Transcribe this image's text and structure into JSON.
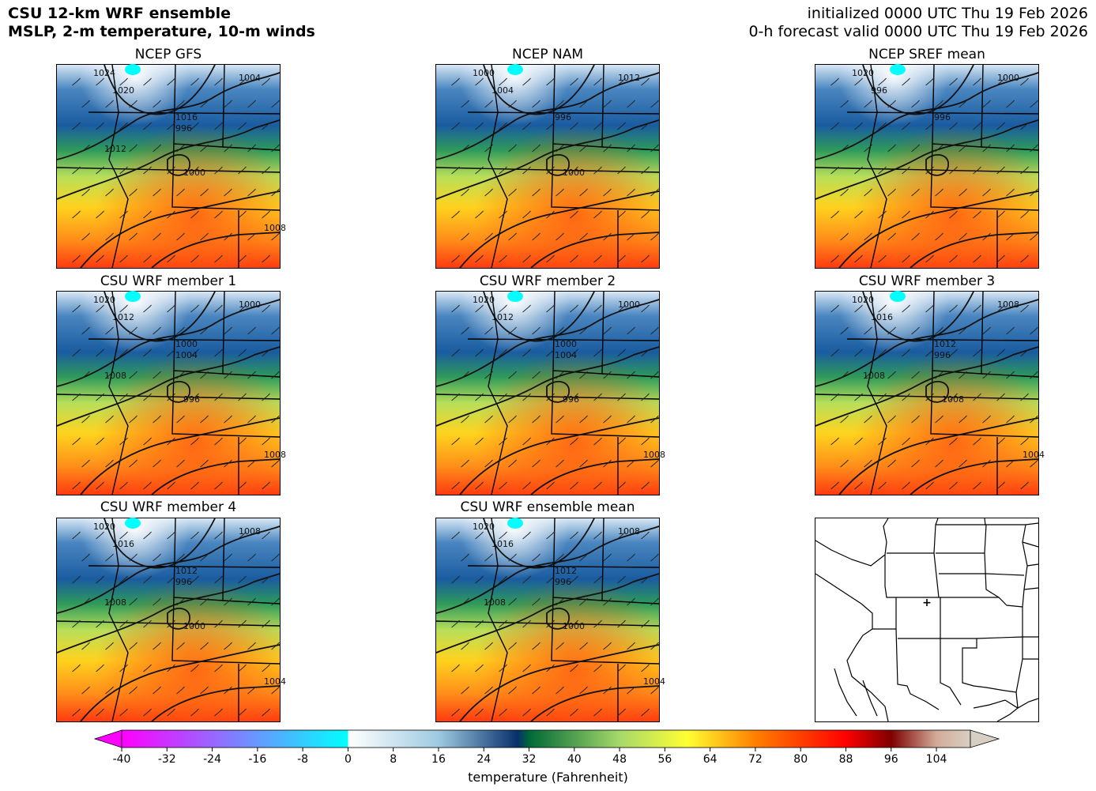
{
  "header": {
    "title_line1": "CSU 12-km WRF ensemble",
    "title_line2": "MSLP, 2-m temperature, 10-m winds",
    "init_line": "initialized 0000 UTC Thu 19 Feb 2026",
    "valid_line": "0-h forecast valid 0000 UTC Thu 19 Feb 2026"
  },
  "panels": [
    {
      "title": "NCEP GFS",
      "isobar_labels": [
        "1024",
        "1020",
        "1016",
        "1004",
        "1000",
        "996",
        "1008",
        "1012"
      ]
    },
    {
      "title": "NCEP NAM",
      "isobar_labels": [
        "1000",
        "1004",
        "996",
        "1012",
        "1000"
      ]
    },
    {
      "title": "NCEP SREF mean",
      "isobar_labels": [
        "1020",
        "996",
        "996",
        "1000"
      ]
    },
    {
      "title": "CSU WRF member 1",
      "isobar_labels": [
        "1020",
        "1012",
        "1000",
        "1000",
        "996",
        "1004",
        "1008",
        "1008"
      ]
    },
    {
      "title": "CSU WRF member 2",
      "isobar_labels": [
        "1020",
        "1012",
        "1000",
        "1000",
        "996",
        "1004",
        "1008"
      ]
    },
    {
      "title": "CSU WRF member 3",
      "isobar_labels": [
        "1020",
        "1016",
        "1012",
        "1008",
        "1008",
        "996",
        "1004",
        "1008"
      ]
    },
    {
      "title": "CSU WRF member 4",
      "isobar_labels": [
        "1020",
        "1016",
        "1012",
        "1008",
        "1000",
        "996",
        "1004",
        "1008"
      ]
    },
    {
      "title": "CSU WRF ensemble mean",
      "isobar_labels": [
        "1020",
        "1016",
        "1012",
        "1008",
        "1000",
        "996",
        "1004",
        "1008"
      ]
    }
  ],
  "colorbar": {
    "label": "temperature (Fahrenheit)",
    "min": -40,
    "max": 110,
    "ticks": [
      -40,
      -32,
      -24,
      -16,
      -8,
      0,
      8,
      16,
      24,
      32,
      40,
      48,
      56,
      64,
      72,
      80,
      88,
      96,
      104
    ],
    "colors": {
      "neg40": "#ff00ff",
      "neg20": "#7f7fff",
      "zero": "#00ffff",
      "zero_plus": "#ffffff",
      "t16": "#9ecae1",
      "t28": "#08306b",
      "t32": "#006837",
      "t48": "#a6d96a",
      "t60": "#ffff33",
      "t72": "#ff7f00",
      "t88": "#ff0000",
      "t96": "#7f0000",
      "t104": "#d2aa98",
      "t110": "#d8cfc4"
    }
  },
  "locator_map": {
    "marker": "+"
  }
}
